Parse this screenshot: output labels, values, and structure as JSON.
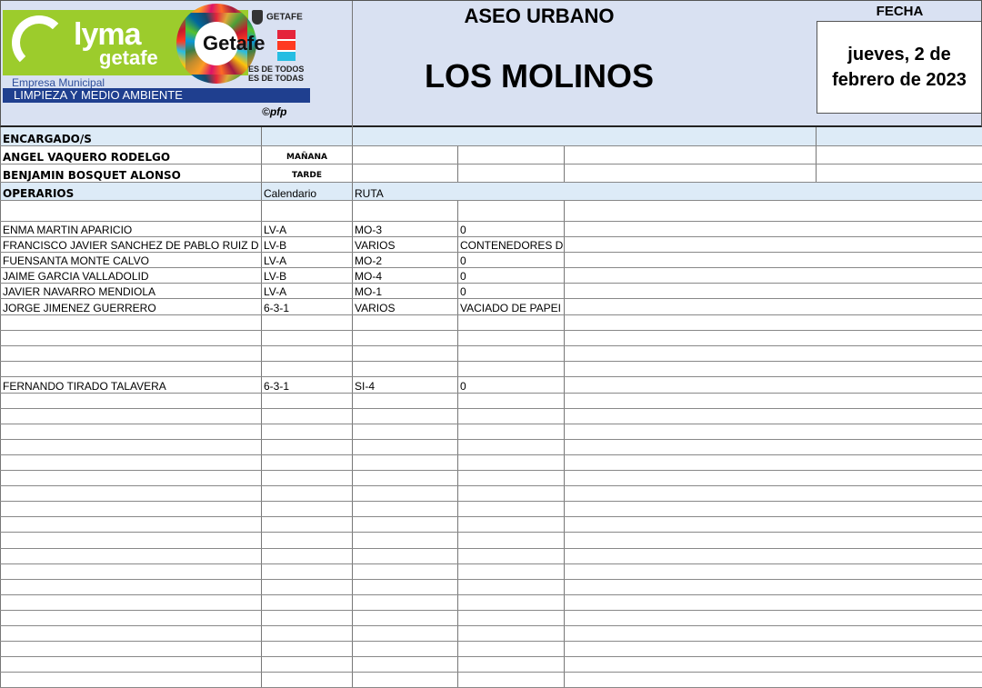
{
  "header": {
    "logo": {
      "brand": "lyma",
      "brand_sub": "getafe",
      "getafe": "Getafe",
      "ayuntamiento": "GETAFE",
      "slogan1": "ES DE TODOS",
      "slogan2": "ES DE TODAS",
      "empresa": "Empresa Municipal",
      "limpieza": "LIMPIEZA Y MEDIO AMBIENTE",
      "credit": "©pfp"
    },
    "section": "ASEO URBANO",
    "zone": "LOS MOLINOS",
    "fecha_label": "FECHA",
    "fecha_value": "jueves, 2 de febrero de 2023"
  },
  "colors": {
    "header_bg": "#d9e1f2",
    "section_bg": "#ddebf7",
    "brand_green": "#9ccc2c",
    "brand_blue": "#1f3f8f"
  },
  "encargados": {
    "label": "ENCARGADO/S",
    "rows": [
      {
        "name": "ANGEL VAQUERO RODELGO",
        "turno": "MAÑANA"
      },
      {
        "name": "BENJAMIN BOSQUET ALONSO",
        "turno": "TARDE"
      }
    ]
  },
  "operarios": {
    "label": "OPERARIOS",
    "col_calendario": "Calendario",
    "col_ruta": "RUTA",
    "rows": [
      [
        "",
        "",
        "",
        ""
      ],
      [
        "ENMA MARTIN APARICIO",
        "LV-A",
        "MO-3",
        "0"
      ],
      [
        "FRANCISCO JAVIER SANCHEZ DE PABLO RUIZ D",
        "LV-B",
        "VARIOS",
        "CONTENEDORES D"
      ],
      [
        "FUENSANTA MONTE CALVO",
        "LV-A",
        "MO-2",
        "0"
      ],
      [
        "JAIME GARCIA VALLADOLID",
        "LV-B",
        "MO-4",
        "0"
      ],
      [
        "JAVIER NAVARRO MENDIOLA",
        "LV-A",
        "MO-1",
        "0"
      ],
      [
        "JORGE JIMENEZ GUERRERO",
        "6-3-1",
        "VARIOS",
        "VACIADO DE PAPEI"
      ],
      [
        "",
        "",
        "",
        ""
      ],
      [
        "",
        "",
        "",
        ""
      ],
      [
        "",
        "",
        "",
        ""
      ],
      [
        "",
        "",
        "",
        ""
      ],
      [
        "FERNANDO TIRADO TALAVERA",
        "6-3-1",
        "SI-4",
        "0"
      ]
    ]
  }
}
